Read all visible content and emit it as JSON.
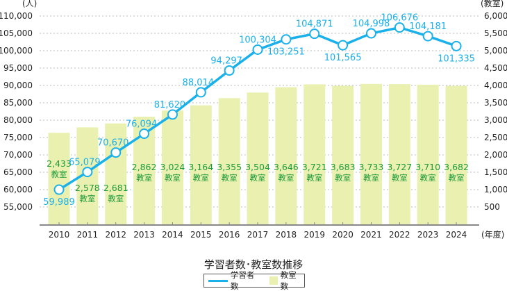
{
  "chart_data": {
    "type": "bar+line",
    "title": "学習者数･教室数推移",
    "categories": [
      "2010",
      "2011",
      "2012",
      "2013",
      "2014",
      "2015",
      "2016",
      "2017",
      "2018",
      "2019",
      "2020",
      "2021",
      "2022",
      "2023",
      "2024"
    ],
    "xlabel": "(年度)",
    "ylabel_left": "(人)",
    "ylabel_right": "(教室)",
    "ylim_left": [
      50000,
      115000
    ],
    "ylim_right": [
      0,
      6000
    ],
    "yticks_left": [
      "55,000",
      "60,000",
      "65,000",
      "70,000",
      "75,000",
      "80,000",
      "85,000",
      "90,000",
      "95,000",
      "100,000",
      "105,000",
      "110,000"
    ],
    "yticks_right": [
      "500",
      "1,000",
      "1,500",
      "2,000",
      "2,500",
      "3,000",
      "3,500",
      "4,000",
      "4,500",
      "5,000",
      "5,500",
      "6,000"
    ],
    "grid": true,
    "legend_position": "bottom",
    "series": [
      {
        "name": "学習者数",
        "type": "line",
        "axis": "left",
        "color": "#1ab0ea",
        "values": [
          59989,
          65079,
          70670,
          76094,
          81620,
          88014,
          94297,
          100304,
          103251,
          104871,
          101565,
          104998,
          106676,
          104181,
          101335
        ],
        "labels": [
          "59,989",
          "65,079",
          "70,670",
          "76,094",
          "81,620",
          "88,014",
          "94,297",
          "100,304",
          "103,251",
          "104,871",
          "101,565",
          "104,998",
          "106,676",
          "104,181",
          "101,335"
        ]
      },
      {
        "name": "教室数",
        "type": "bar",
        "axis": "right",
        "color": "#eaf0b0",
        "label_color": "#1d9a3a",
        "values": [
          2433,
          2578,
          2681,
          2862,
          3024,
          3164,
          3355,
          3504,
          3646,
          3721,
          3683,
          3733,
          3727,
          3710,
          3682
        ],
        "labels": [
          "2,433",
          "2,578",
          "2,681",
          "2,862",
          "3,024",
          "3,164",
          "3,355",
          "3,504",
          "3,646",
          "3,721",
          "3,683",
          "3,733",
          "3,727",
          "3,710",
          "3,682"
        ],
        "unit": "教室"
      }
    ]
  }
}
